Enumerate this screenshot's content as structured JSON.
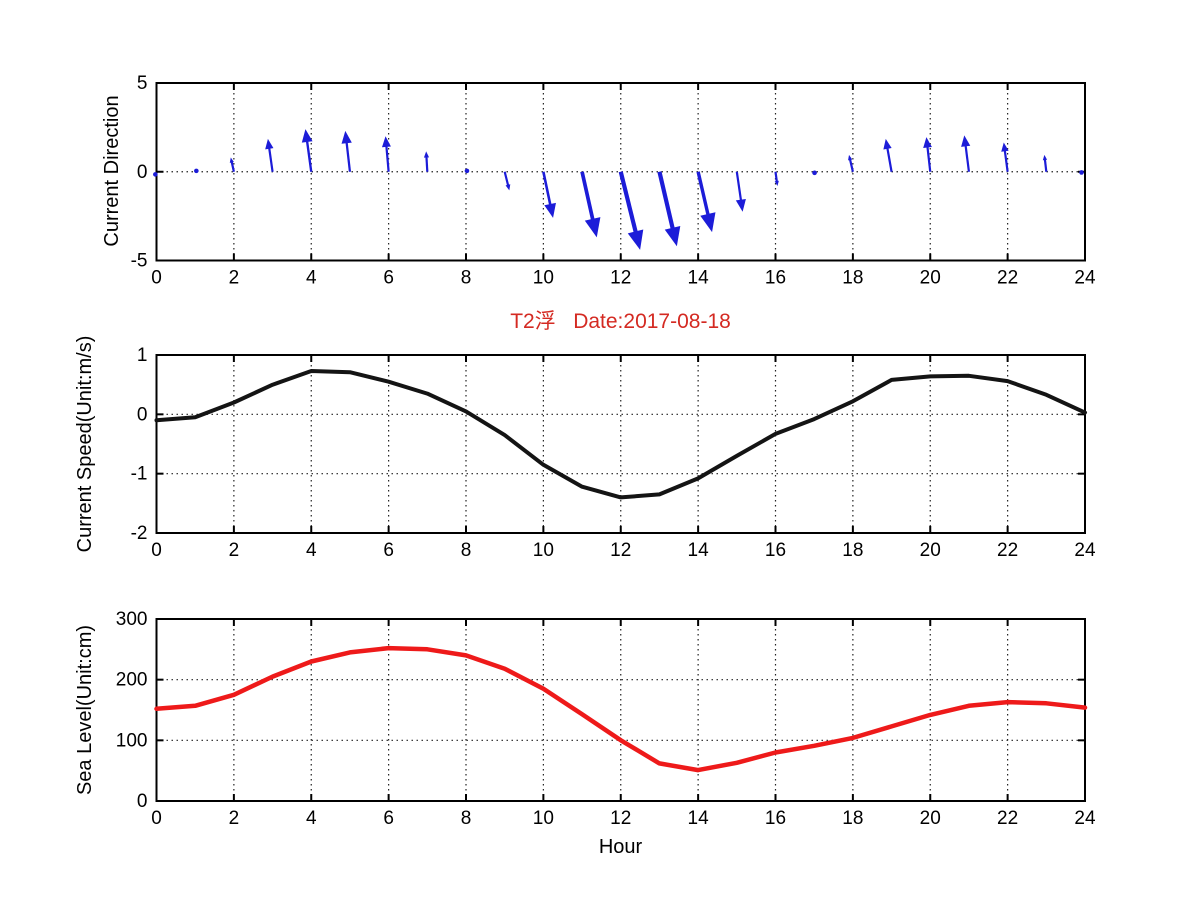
{
  "figure": {
    "title": "T2浮   Date:2017-08-18",
    "title_color": "#d42a22",
    "xlabel": "Hour",
    "background": "#ffffff",
    "axis_color": "#000000",
    "grid_style": "dotted"
  },
  "chart_data": [
    {
      "type": "quiver",
      "panel": "current-direction",
      "ylabel": "Current Direction",
      "color": "#1c1cd8",
      "xlim": [
        0,
        24
      ],
      "ylim": [
        -5,
        5
      ],
      "xticks": [
        0,
        2,
        4,
        6,
        8,
        10,
        12,
        14,
        16,
        18,
        20,
        22,
        24
      ],
      "yticks": [
        -5,
        0,
        5
      ],
      "grid_x": [
        2,
        4,
        6,
        8,
        10,
        12,
        14,
        16,
        18,
        20,
        22
      ],
      "grid_y": [
        0
      ],
      "arrows": [
        {
          "x": 0,
          "u": -0.06,
          "v": -0.3
        },
        {
          "x": 1,
          "u": 0.06,
          "v": 0.1
        },
        {
          "x": 2,
          "u": -0.08,
          "v": 0.8
        },
        {
          "x": 3,
          "u": -0.12,
          "v": 1.85
        },
        {
          "x": 4,
          "u": -0.15,
          "v": 2.4
        },
        {
          "x": 5,
          "u": -0.12,
          "v": 2.3
        },
        {
          "x": 6,
          "u": -0.08,
          "v": 2.0
        },
        {
          "x": 7,
          "u": -0.03,
          "v": 1.15
        },
        {
          "x": 8,
          "u": 0.05,
          "v": 0.1
        },
        {
          "x": 9,
          "u": 0.12,
          "v": -1.05
        },
        {
          "x": 10,
          "u": 0.25,
          "v": -2.6
        },
        {
          "x": 11,
          "u": 0.38,
          "v": -3.7
        },
        {
          "x": 12,
          "u": 0.5,
          "v": -4.4
        },
        {
          "x": 13,
          "u": 0.45,
          "v": -4.2
        },
        {
          "x": 14,
          "u": 0.36,
          "v": -3.4
        },
        {
          "x": 15,
          "u": 0.15,
          "v": -2.25
        },
        {
          "x": 16,
          "u": 0.05,
          "v": -0.8
        },
        {
          "x": 17,
          "u": 0.02,
          "v": -0.12
        },
        {
          "x": 18,
          "u": -0.1,
          "v": 0.95
        },
        {
          "x": 19,
          "u": -0.15,
          "v": 1.85
        },
        {
          "x": 20,
          "u": -0.1,
          "v": 1.95
        },
        {
          "x": 21,
          "u": -0.12,
          "v": 2.05
        },
        {
          "x": 22,
          "u": -0.1,
          "v": 1.65
        },
        {
          "x": 23,
          "u": -0.05,
          "v": 0.95
        },
        {
          "x": 24,
          "u": -0.18,
          "v": -0.08
        }
      ]
    },
    {
      "type": "line",
      "panel": "current-speed",
      "ylabel": "Current Speed(Unit:m/s)",
      "color": "#141414",
      "line_width": 4,
      "xlim": [
        0,
        24
      ],
      "ylim": [
        -2,
        1
      ],
      "xticks": [
        0,
        2,
        4,
        6,
        8,
        10,
        12,
        14,
        16,
        18,
        20,
        22,
        24
      ],
      "yticks": [
        -2,
        -1,
        0,
        1
      ],
      "grid_x": [
        2,
        4,
        6,
        8,
        10,
        12,
        14,
        16,
        18,
        20,
        22
      ],
      "grid_y": [
        -1,
        0
      ],
      "x": [
        0,
        1,
        2,
        3,
        4,
        5,
        6,
        7,
        8,
        9,
        10,
        11,
        12,
        13,
        14,
        15,
        16,
        17,
        18,
        19,
        20,
        21,
        22,
        23,
        24
      ],
      "values": [
        -0.1,
        -0.05,
        0.2,
        0.5,
        0.73,
        0.71,
        0.55,
        0.35,
        0.05,
        -0.35,
        -0.85,
        -1.22,
        -1.4,
        -1.35,
        -1.08,
        -0.7,
        -0.33,
        -0.08,
        0.22,
        0.58,
        0.64,
        0.65,
        0.56,
        0.33,
        0.03
      ]
    },
    {
      "type": "line",
      "panel": "sea-level",
      "ylabel": "Sea Level(Unit:cm)",
      "color": "#ee1a1a",
      "line_width": 4.5,
      "xlim": [
        0,
        24
      ],
      "ylim": [
        0,
        300
      ],
      "xticks": [
        0,
        2,
        4,
        6,
        8,
        10,
        12,
        14,
        16,
        18,
        20,
        22,
        24
      ],
      "yticks": [
        0,
        100,
        200,
        300
      ],
      "grid_x": [
        2,
        4,
        6,
        8,
        10,
        12,
        14,
        16,
        18,
        20,
        22
      ],
      "grid_y": [
        100,
        200
      ],
      "x": [
        0,
        1,
        2,
        3,
        4,
        5,
        6,
        7,
        8,
        9,
        10,
        11,
        12,
        13,
        14,
        15,
        16,
        17,
        18,
        19,
        20,
        21,
        22,
        23,
        24
      ],
      "values": [
        152,
        157,
        175,
        205,
        230,
        245,
        252,
        250,
        240,
        218,
        185,
        143,
        100,
        62,
        51,
        63,
        80,
        91,
        104,
        123,
        142,
        157,
        163,
        161,
        154
      ]
    }
  ]
}
